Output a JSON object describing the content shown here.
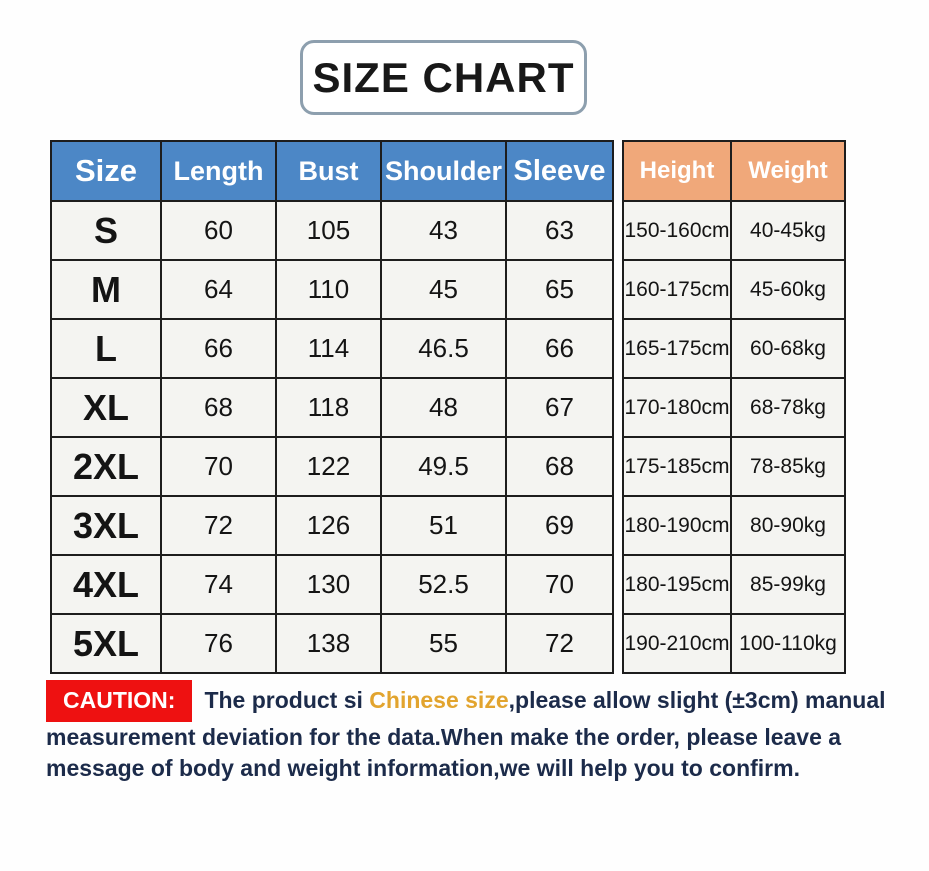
{
  "title": "SIZE CHART",
  "chart_data": {
    "type": "table",
    "title": "SIZE CHART",
    "columns": [
      "Size",
      "Length",
      "Bust",
      "Shoulder",
      "Sleeve",
      "Height",
      "Weight"
    ],
    "rows": [
      [
        "S",
        "60",
        "105",
        "43",
        "63",
        "150-160cm",
        "40-45kg"
      ],
      [
        "M",
        "64",
        "110",
        "45",
        "65",
        "160-175cm",
        "45-60kg"
      ],
      [
        "L",
        "66",
        "114",
        "46.5",
        "66",
        "165-175cm",
        "60-68kg"
      ],
      [
        "XL",
        "68",
        "118",
        "48",
        "67",
        "170-180cm",
        "68-78kg"
      ],
      [
        "2XL",
        "70",
        "122",
        "49.5",
        "68",
        "175-185cm",
        "78-85kg"
      ],
      [
        "3XL",
        "72",
        "126",
        "51",
        "69",
        "180-190cm",
        "80-90kg"
      ],
      [
        "4XL",
        "74",
        "130",
        "52.5",
        "70",
        "180-195cm",
        "85-99kg"
      ],
      [
        "5XL",
        "76",
        "138",
        "55",
        "72",
        "190-210cm",
        "100-110kg"
      ]
    ]
  },
  "caution": {
    "label": "CAUTION:",
    "text_before_highlight": "The product si ",
    "highlight": "Chinese size",
    "text_after_highlight": ",please allow slight (±3cm) manual measurement deviation for the data.When make the order, please leave a message of body and weight information,we will help you to confirm."
  },
  "colors": {
    "header_blue": "#4c87c6",
    "header_orange": "#f0a87a",
    "caution_red": "#ee1111",
    "highlight_gold": "#e2a42e",
    "text_navy": "#1c2b4a",
    "title_border": "#8d9fae"
  }
}
